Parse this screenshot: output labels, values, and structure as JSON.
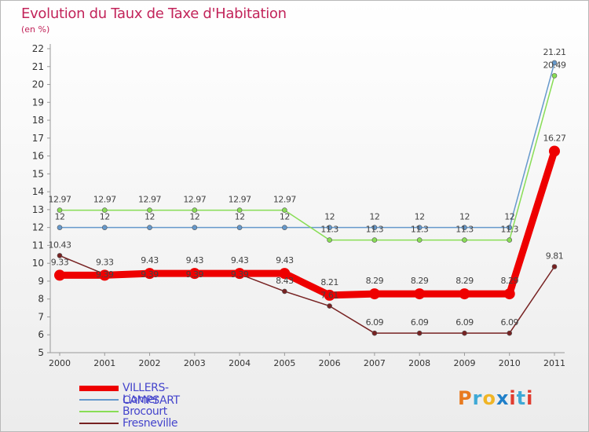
{
  "header": {
    "title": "Evolution du Taux de Taxe d'Habitation",
    "subtitle": "(en %)"
  },
  "logo": {
    "text": "Proxiti",
    "colors": [
      "#e87a1f",
      "#3fa9d6",
      "#f0b526",
      "#1f7fc9",
      "#e03c2f",
      "#3fa9d6",
      "#e03c2f"
    ]
  },
  "chart_data": {
    "type": "line",
    "title": "Evolution du Taux de Taxe d'Habitation",
    "ylabel": "(en %)",
    "xlabel": "",
    "categories": [
      "2000",
      "2001",
      "2002",
      "2003",
      "2004",
      "2005",
      "2006",
      "2007",
      "2008",
      "2009",
      "2010",
      "2011"
    ],
    "ylim": [
      5,
      22
    ],
    "yticks": [
      5,
      6,
      7,
      8,
      9,
      10,
      11,
      12,
      13,
      14,
      15,
      16,
      17,
      18,
      19,
      20,
      21,
      22
    ],
    "grid": false,
    "legend_position": "bottom-left",
    "series": [
      {
        "name": "VILLERS-CAMPSART",
        "color": "#ee0000",
        "values": [
          9.33,
          9.33,
          9.43,
          9.43,
          9.43,
          9.43,
          8.21,
          8.29,
          8.29,
          8.29,
          8.29,
          16.27
        ],
        "labels": [
          "9.33",
          "9.33",
          "9.43",
          "9.43",
          "9.43",
          "9.43",
          "8.21",
          "8.29",
          "8.29",
          "8.29",
          "8.29",
          "16.27"
        ]
      },
      {
        "name": "Liomer",
        "color": "#6699cc",
        "values": [
          12,
          12,
          12,
          12,
          12,
          12,
          12,
          12,
          12,
          12,
          12,
          21.21
        ],
        "labels": [
          "12",
          "12",
          "12",
          "12",
          "12",
          "12",
          "12",
          "12",
          "12",
          "12",
          "12",
          "21.21"
        ]
      },
      {
        "name": "Brocourt",
        "color": "#88dd55",
        "values": [
          12.97,
          12.97,
          12.97,
          12.97,
          12.97,
          12.97,
          11.3,
          11.3,
          11.3,
          11.3,
          11.3,
          20.49
        ],
        "labels": [
          "12.97",
          "12.97",
          "12.97",
          "12.97",
          "12.97",
          "12.97",
          "11.3",
          "11.3",
          "11.3",
          "11.3",
          "11.3",
          "20.49"
        ]
      },
      {
        "name": "Fresneville",
        "color": "#772222",
        "values": [
          10.43,
          9.39,
          9.39,
          9.39,
          9.39,
          8.43,
          7.61,
          6.09,
          6.09,
          6.09,
          6.09,
          9.81
        ],
        "labels": [
          "10.43",
          "9.39",
          "9.39",
          "9.39",
          "9.39",
          "8.43",
          "7.61",
          "6.09",
          "6.09",
          "6.09",
          "6.09",
          "9.81"
        ]
      }
    ]
  }
}
